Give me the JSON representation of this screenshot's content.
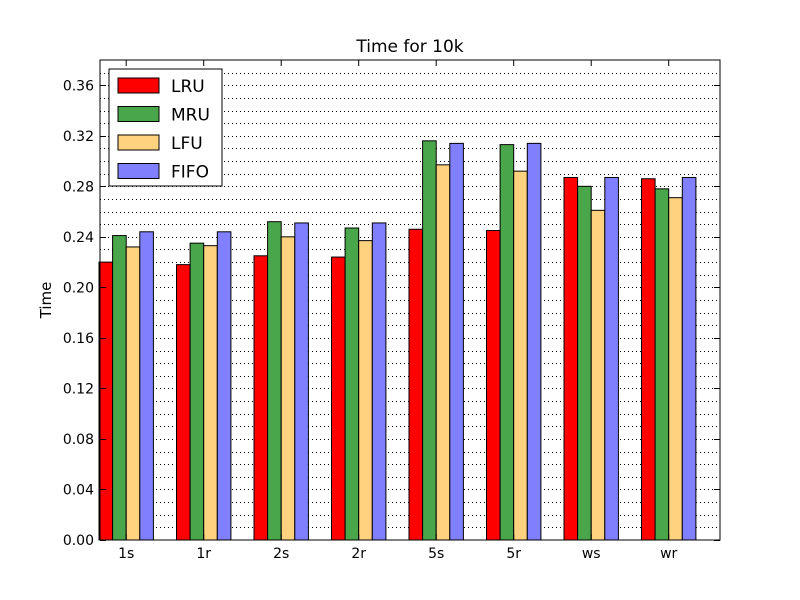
{
  "chart_data": {
    "type": "bar",
    "title": "Time for 10k",
    "xlabel": "",
    "ylabel": "Time",
    "ylim": [
      0,
      0.38
    ],
    "yticks": [
      "0.00",
      "0.04",
      "0.08",
      "0.12",
      "0.16",
      "0.20",
      "0.24",
      "0.28",
      "0.32",
      "0.36"
    ],
    "minor_grid_step": 0.01,
    "grid": true,
    "legend_position": "top-left",
    "categories": [
      "1s",
      "1r",
      "2s",
      "2r",
      "5s",
      "5r",
      "ws",
      "wr"
    ],
    "series": [
      {
        "name": "LRU",
        "color": "#ff0000",
        "values": [
          0.22,
          0.218,
          0.225,
          0.224,
          0.246,
          0.245,
          0.287,
          0.286
        ]
      },
      {
        "name": "MRU",
        "color": "#4aa64a",
        "values": [
          0.241,
          0.235,
          0.252,
          0.247,
          0.316,
          0.313,
          0.28,
          0.278
        ]
      },
      {
        "name": "LFU",
        "color": "#ffd280",
        "values": [
          0.232,
          0.233,
          0.24,
          0.237,
          0.297,
          0.292,
          0.261,
          0.271
        ]
      },
      {
        "name": "FIFO",
        "color": "#8080ff",
        "values": [
          0.244,
          0.244,
          0.251,
          0.251,
          0.314,
          0.314,
          0.287,
          0.287
        ]
      }
    ]
  }
}
